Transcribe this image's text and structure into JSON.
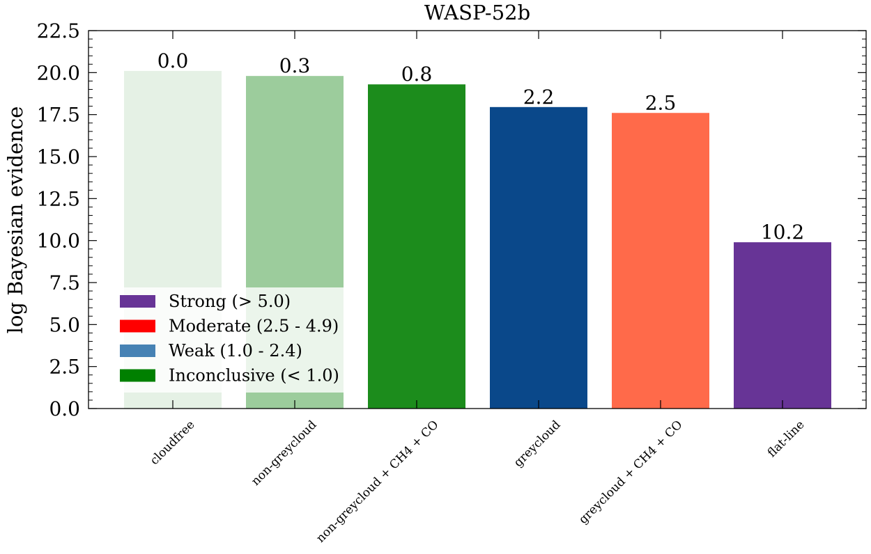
{
  "chart_data": {
    "type": "bar",
    "title": "WASP-52b",
    "xlabel": "",
    "ylabel": "log Bayesian evidence",
    "ylim": [
      0,
      22.5
    ],
    "yticks": [
      "0.0",
      "2.5",
      "5.0",
      "7.5",
      "10.0",
      "12.5",
      "15.0",
      "17.5",
      "20.0",
      "22.5"
    ],
    "categories": [
      "cloudfree",
      "non-greycloud",
      "non-greycloud + CH4 + CO",
      "greycloud",
      "greycloud + CH4 + CO",
      "flat-line"
    ],
    "values": [
      20.1,
      19.8,
      19.3,
      17.95,
      17.6,
      9.9
    ],
    "bar_labels": [
      "0.0",
      "0.3",
      "0.8",
      "2.2",
      "2.5",
      "10.2"
    ],
    "bar_colors": [
      "#e5f1e5",
      "#9ccc9c",
      "#1c8c1c",
      "#0a488a",
      "#ff6a4a",
      "#673496"
    ],
    "legend": {
      "position": "lower-left",
      "entries": [
        {
          "label": "Strong (> 5.0)",
          "color": "#673496"
        },
        {
          "label": "Moderate (2.5 - 4.9)",
          "color": "#ff0000"
        },
        {
          "label": "Weak (1.0 - 2.4)",
          "color": "#4682b4"
        },
        {
          "label": "Inconclusive (< 1.0)",
          "color": "#008000"
        }
      ]
    },
    "grid": false
  }
}
